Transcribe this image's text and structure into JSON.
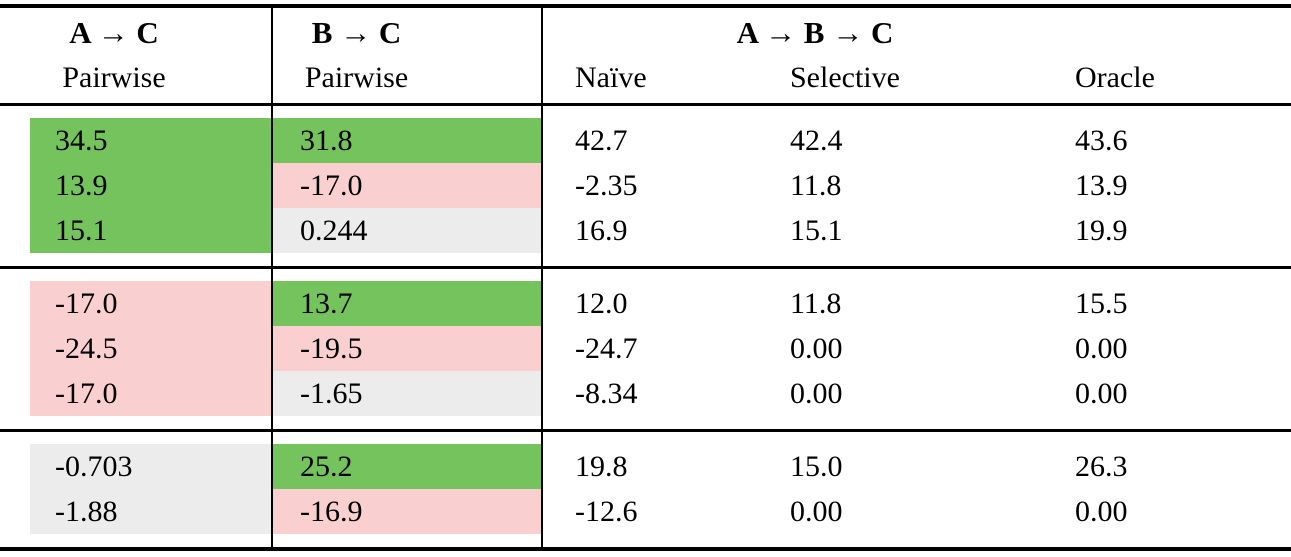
{
  "colors": {
    "green": "#74C35C",
    "pink": "#FACFCF",
    "gray": "#ECECEC",
    "rule": "#000000"
  },
  "header": {
    "pairwise_ac": {
      "title": "A → C",
      "subtitle": "Pairwise"
    },
    "pairwise_bc": {
      "title": "B → C",
      "subtitle": "Pairwise"
    },
    "chain": {
      "title": "A → B → C",
      "columns": [
        "Naïve",
        "Selective",
        "Oracle"
      ]
    }
  },
  "groups": [
    {
      "rows": [
        {
          "cells": [
            {
              "text": "34.5",
              "bg": "green"
            },
            {
              "text": "31.8",
              "bg": "green"
            },
            {
              "text": "42.7"
            },
            {
              "text": "42.4"
            },
            {
              "text": "43.6"
            }
          ]
        },
        {
          "cells": [
            {
              "text": "13.9",
              "bg": "green"
            },
            {
              "text": "-17.0",
              "bg": "pink"
            },
            {
              "text": "-2.35"
            },
            {
              "text": "11.8"
            },
            {
              "text": "13.9"
            }
          ]
        },
        {
          "cells": [
            {
              "text": "15.1",
              "bg": "green"
            },
            {
              "text": "0.244",
              "bg": "gray"
            },
            {
              "text": "16.9"
            },
            {
              "text": "15.1"
            },
            {
              "text": "19.9"
            }
          ]
        }
      ]
    },
    {
      "rows": [
        {
          "cells": [
            {
              "text": "-17.0",
              "bg": "pink"
            },
            {
              "text": "13.7",
              "bg": "green"
            },
            {
              "text": "12.0"
            },
            {
              "text": "11.8"
            },
            {
              "text": "15.5"
            }
          ]
        },
        {
          "cells": [
            {
              "text": "-24.5",
              "bg": "pink"
            },
            {
              "text": "-19.5",
              "bg": "pink"
            },
            {
              "text": "-24.7"
            },
            {
              "text": "0.00"
            },
            {
              "text": "0.00"
            }
          ]
        },
        {
          "cells": [
            {
              "text": "-17.0",
              "bg": "pink"
            },
            {
              "text": "-1.65",
              "bg": "gray"
            },
            {
              "text": "-8.34"
            },
            {
              "text": "0.00"
            },
            {
              "text": "0.00"
            }
          ]
        }
      ]
    },
    {
      "rows": [
        {
          "cells": [
            {
              "text": "-0.703",
              "bg": "gray"
            },
            {
              "text": "25.2",
              "bg": "green"
            },
            {
              "text": "19.8"
            },
            {
              "text": "15.0"
            },
            {
              "text": "26.3"
            }
          ]
        },
        {
          "cells": [
            {
              "text": "-1.88",
              "bg": "gray"
            },
            {
              "text": "-16.9",
              "bg": "pink"
            },
            {
              "text": "-12.6"
            },
            {
              "text": "0.00"
            },
            {
              "text": "0.00"
            }
          ]
        }
      ]
    }
  ]
}
